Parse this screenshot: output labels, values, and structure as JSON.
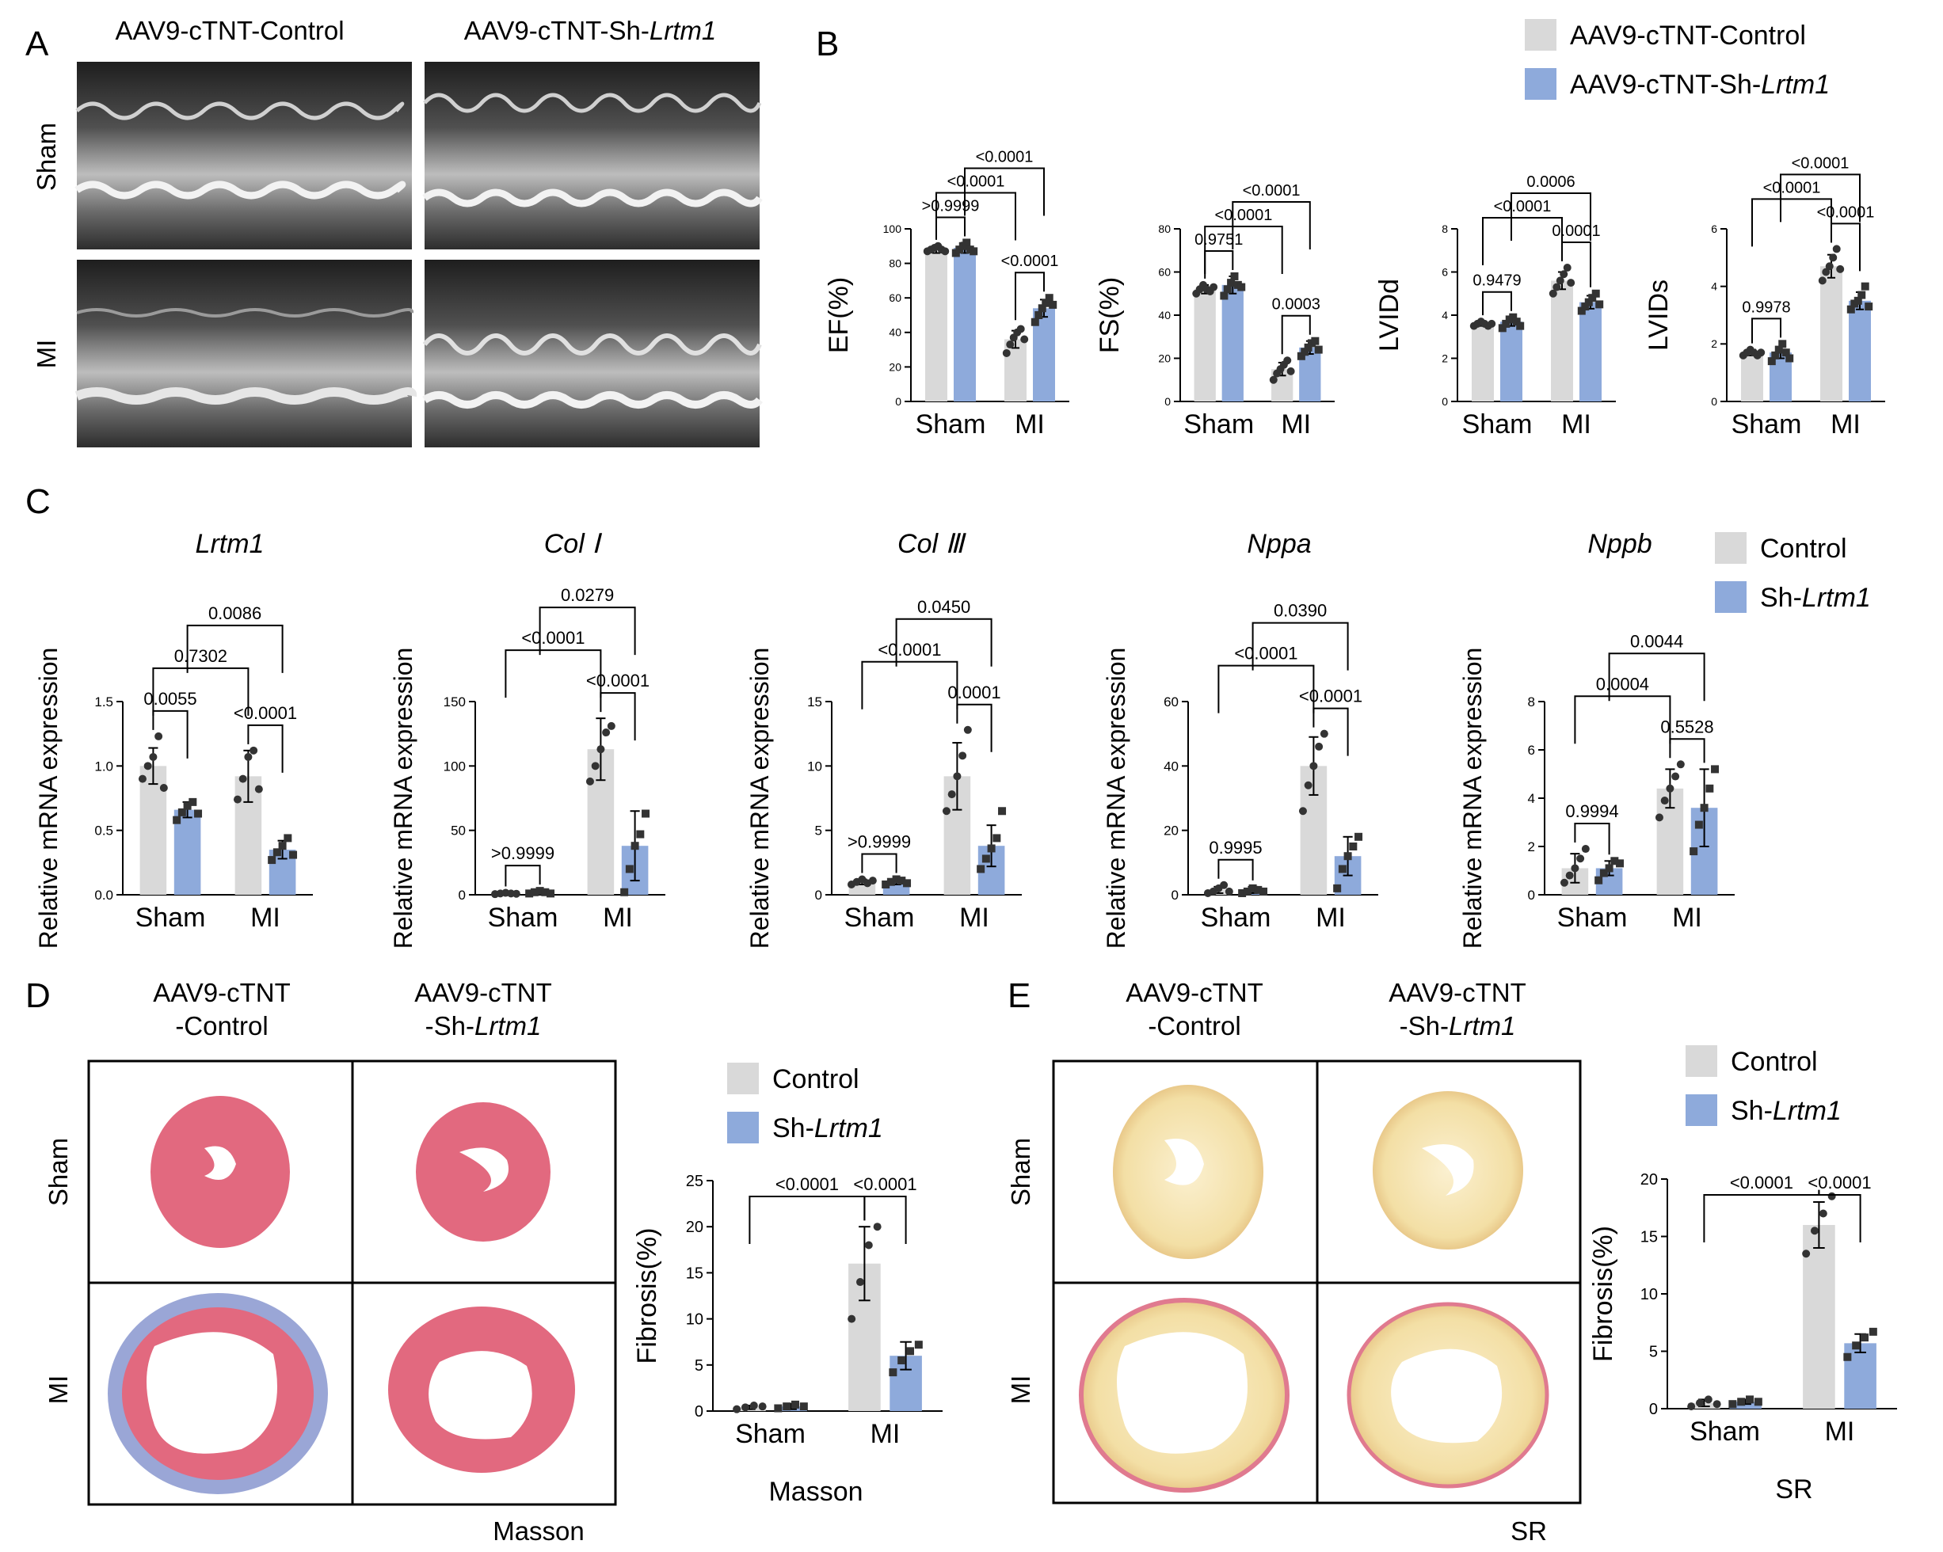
{
  "colors": {
    "control": "#d9d9d9",
    "sh": "#8eaadb",
    "dot": "#333333",
    "line": "#000000"
  },
  "panels": {
    "A": "A",
    "B": "B",
    "C": "C",
    "D": "D",
    "E": "E"
  },
  "group_ctrl": "AAV9-cTNT-Control",
  "group_sh_prefix": "AAV9-cTNT-Sh-",
  "gene_italic": "Lrtm1",
  "row_sham": "Sham",
  "row_mi": "MI",
  "short_ctrl": "Control",
  "short_sh_prefix": "Sh-",
  "split_top": "AAV9-cTNT",
  "split_ctrl": "-Control",
  "split_sh": "-Sh-",
  "stain_masson": "Masson",
  "stain_sr": "SR",
  "chart_data": [
    {
      "id": "EF",
      "type": "bar",
      "ylabel": "EF(%)",
      "categories": [
        "Sham",
        "MI"
      ],
      "ylim": [
        0,
        100
      ],
      "ticks": [
        0,
        20,
        40,
        60,
        80,
        100
      ],
      "series": [
        {
          "name": "AAV9-cTNT-Control",
          "values": [
            88,
            36
          ],
          "sd": [
            2,
            5
          ],
          "points": [
            [
              87,
              88,
              89,
              90,
              88,
              87
            ],
            [
              28,
              33,
              37,
              40,
              42,
              36
            ]
          ]
        },
        {
          "name": "AAV9-cTNT-Sh-Lrtm1",
          "values": [
            89,
            54
          ],
          "sd": [
            3,
            5
          ],
          "points": [
            [
              86,
              88,
              90,
              92,
              88,
              87
            ],
            [
              46,
              50,
              54,
              57,
              60,
              56
            ]
          ]
        }
      ],
      "comparisons": [
        {
          "label": ">0.9999",
          "a": 0,
          "b": 1,
          "level": 1
        },
        {
          "label": "<0.0001",
          "a": 2,
          "b": 3,
          "level": 1
        },
        {
          "label": "<0.0001",
          "a": 0,
          "b": 2,
          "level": 2
        },
        {
          "label": "<0.0001",
          "a": 1,
          "b": 3,
          "level": 3
        }
      ]
    },
    {
      "id": "FS",
      "type": "bar",
      "ylabel": "FS(%)",
      "categories": [
        "Sham",
        "MI"
      ],
      "ylim": [
        0,
        80
      ],
      "ticks": [
        0,
        20,
        40,
        60,
        80
      ],
      "series": [
        {
          "name": "AAV9-cTNT-Control",
          "values": [
            52,
            15
          ],
          "sd": [
            2,
            3
          ],
          "points": [
            [
              50,
              52,
              54,
              52,
              51,
              53
            ],
            [
              10,
              13,
              15,
              17,
              19,
              14
            ]
          ]
        },
        {
          "name": "AAV9-cTNT-Sh-Lrtm1",
          "values": [
            54,
            25
          ],
          "sd": [
            4,
            3
          ],
          "points": [
            [
              49,
              52,
              55,
              58,
              54,
              53
            ],
            [
              21,
              23,
              25,
              27,
              28,
              24
            ]
          ]
        }
      ],
      "comparisons": [
        {
          "label": "0.9751",
          "a": 0,
          "b": 1,
          "level": 1
        },
        {
          "label": "0.0003",
          "a": 2,
          "b": 3,
          "level": 1
        },
        {
          "label": "<0.0001",
          "a": 0,
          "b": 2,
          "level": 2
        },
        {
          "label": "<0.0001",
          "a": 1,
          "b": 3,
          "level": 3
        }
      ]
    },
    {
      "id": "LVIDd",
      "type": "bar",
      "ylabel": "LVIDd",
      "categories": [
        "Sham",
        "MI"
      ],
      "ylim": [
        0,
        8
      ],
      "ticks": [
        0,
        2,
        4,
        6,
        8
      ],
      "series": [
        {
          "name": "AAV9-cTNT-Control",
          "values": [
            3.6,
            5.6
          ],
          "sd": [
            0.1,
            0.4
          ],
          "points": [
            [
              3.5,
              3.6,
              3.7,
              3.6,
              3.5,
              3.6
            ],
            [
              5.0,
              5.3,
              5.6,
              5.9,
              6.2,
              5.5
            ]
          ]
        },
        {
          "name": "AAV9-cTNT-Sh-Lrtm1",
          "values": [
            3.7,
            4.6
          ],
          "sd": [
            0.2,
            0.3
          ],
          "points": [
            [
              3.4,
              3.6,
              3.8,
              3.9,
              3.7,
              3.5
            ],
            [
              4.2,
              4.4,
              4.6,
              4.8,
              5.0,
              4.5
            ]
          ]
        }
      ],
      "comparisons": [
        {
          "label": "0.9479",
          "a": 0,
          "b": 1,
          "level": 1
        },
        {
          "label": "0.0001",
          "a": 2,
          "b": 3,
          "level": 1
        },
        {
          "label": "<0.0001",
          "a": 0,
          "b": 2,
          "level": 2
        },
        {
          "label": "0.0006",
          "a": 1,
          "b": 3,
          "level": 3
        }
      ]
    },
    {
      "id": "LVIDs",
      "type": "bar",
      "ylabel": "LVIDs",
      "categories": [
        "Sham",
        "MI"
      ],
      "ylim": [
        0,
        6
      ],
      "ticks": [
        0,
        2,
        4,
        6
      ],
      "series": [
        {
          "name": "AAV9-cTNT-Control",
          "values": [
            1.7,
            4.7
          ],
          "sd": [
            0.1,
            0.4
          ],
          "points": [
            [
              1.6,
              1.7,
              1.8,
              1.7,
              1.6,
              1.7
            ],
            [
              4.2,
              4.5,
              4.7,
              5.0,
              5.3,
              4.6
            ]
          ]
        },
        {
          "name": "AAV9-cTNT-Sh-Lrtm1",
          "values": [
            1.7,
            3.5
          ],
          "sd": [
            0.2,
            0.3
          ],
          "points": [
            [
              1.4,
              1.6,
              1.8,
              2.0,
              1.7,
              1.5
            ],
            [
              3.2,
              3.4,
              3.5,
              3.7,
              4.0,
              3.3
            ]
          ]
        }
      ],
      "comparisons": [
        {
          "label": "0.9978",
          "a": 0,
          "b": 1,
          "level": 1
        },
        {
          "label": "<0.0001",
          "a": 2,
          "b": 3,
          "level": 1
        },
        {
          "label": "<0.0001",
          "a": 0,
          "b": 2,
          "level": 2
        },
        {
          "label": "<0.0001",
          "a": 1,
          "b": 3,
          "level": 3
        }
      ]
    },
    {
      "id": "Lrtm1",
      "type": "bar",
      "title": "Lrtm1",
      "ylabel": "Relative mRNA expression",
      "categories": [
        "Sham",
        "MI"
      ],
      "ylim": [
        0,
        1.5
      ],
      "ticks": [
        0.0,
        0.5,
        1.0,
        1.5
      ],
      "series": [
        {
          "name": "Control",
          "values": [
            1.0,
            0.92
          ],
          "sd": [
            0.14,
            0.2
          ],
          "points": [
            [
              0.9,
              1.0,
              1.07,
              1.23,
              0.83
            ],
            [
              0.74,
              0.9,
              1.07,
              1.12,
              0.82
            ]
          ]
        },
        {
          "name": "Sh-Lrtm1",
          "values": [
            0.66,
            0.35
          ],
          "sd": [
            0.06,
            0.07
          ],
          "points": [
            [
              0.58,
              0.64,
              0.69,
              0.72,
              0.63
            ],
            [
              0.27,
              0.33,
              0.38,
              0.44,
              0.31
            ]
          ]
        }
      ],
      "comparisons": [
        {
          "label": "0.0055",
          "a": 0,
          "b": 1,
          "level": 1
        },
        {
          "label": "<0.0001",
          "a": 2,
          "b": 3,
          "level": 1
        },
        {
          "label": "0.7302",
          "a": 0,
          "b": 2,
          "level": 2
        },
        {
          "label": "0.0086",
          "a": 1,
          "b": 3,
          "level": 3
        }
      ]
    },
    {
      "id": "Col1",
      "type": "bar",
      "title": "Col Ⅰ",
      "ylabel": "Relative mRNA expression",
      "categories": [
        "Sham",
        "MI"
      ],
      "ylim": [
        0,
        150
      ],
      "ticks": [
        0,
        50,
        100,
        150
      ],
      "series": [
        {
          "name": "Control",
          "values": [
            1,
            113
          ],
          "sd": [
            0.5,
            24
          ],
          "points": [
            [
              0.5,
              1,
              1.5,
              1,
              0.8
            ],
            [
              88,
              100,
              113,
              126,
              131
            ]
          ]
        },
        {
          "name": "Sh-Lrtm1",
          "values": [
            2,
            38
          ],
          "sd": [
            1,
            27
          ],
          "points": [
            [
              1,
              2,
              3,
              2,
              1
            ],
            [
              2,
              20,
              38,
              47,
              63
            ]
          ]
        }
      ],
      "comparisons": [
        {
          "label": ">0.9999",
          "a": 0,
          "b": 1,
          "level": 1
        },
        {
          "label": "<0.0001",
          "a": 2,
          "b": 3,
          "level": 1
        },
        {
          "label": "<0.0001",
          "a": 0,
          "b": 2,
          "level": 2
        },
        {
          "label": "0.0279",
          "a": 1,
          "b": 3,
          "level": 3
        }
      ]
    },
    {
      "id": "Col3",
      "type": "bar",
      "title": "Col Ⅲ",
      "ylabel": "Relative mRNA expression",
      "categories": [
        "Sham",
        "MI"
      ],
      "ylim": [
        0,
        15
      ],
      "ticks": [
        0,
        5,
        10,
        15
      ],
      "series": [
        {
          "name": "Control",
          "values": [
            1.0,
            9.2
          ],
          "sd": [
            0.2,
            2.6
          ],
          "points": [
            [
              0.8,
              1.0,
              1.2,
              0.9,
              1.1
            ],
            [
              6.5,
              7.8,
              9.2,
              10.8,
              12.8
            ]
          ]
        },
        {
          "name": "Sh-Lrtm1",
          "values": [
            1.0,
            3.8
          ],
          "sd": [
            0.2,
            1.6
          ],
          "points": [
            [
              0.8,
              1.0,
              1.2,
              1.1,
              0.9
            ],
            [
              2.0,
              2.8,
              3.6,
              4.4,
              6.5
            ]
          ]
        }
      ],
      "comparisons": [
        {
          "label": ">0.9999",
          "a": 0,
          "b": 1,
          "level": 1
        },
        {
          "label": "0.0001",
          "a": 2,
          "b": 3,
          "level": 1
        },
        {
          "label": "<0.0001",
          "a": 0,
          "b": 2,
          "level": 2
        },
        {
          "label": "0.0450",
          "a": 1,
          "b": 3,
          "level": 3
        }
      ]
    },
    {
      "id": "Nppa",
      "type": "bar",
      "title": "Nppa",
      "ylabel": "Relative mRNA expression",
      "categories": [
        "Sham",
        "MI"
      ],
      "ylim": [
        0,
        60
      ],
      "ticks": [
        0,
        20,
        40,
        60
      ],
      "series": [
        {
          "name": "Control",
          "values": [
            1.5,
            40
          ],
          "sd": [
            1,
            9
          ],
          "points": [
            [
              0.5,
              1,
              2,
              3,
              1
            ],
            [
              26,
              34,
              40,
              46,
              50
            ]
          ]
        },
        {
          "name": "Sh-Lrtm1",
          "values": [
            1.5,
            12
          ],
          "sd": [
            1,
            6
          ],
          "points": [
            [
              0.5,
              1,
              2,
              1.5,
              1
            ],
            [
              2,
              8,
              12,
              15,
              18
            ]
          ]
        }
      ],
      "comparisons": [
        {
          "label": "0.9995",
          "a": 0,
          "b": 1,
          "level": 1
        },
        {
          "label": "<0.0001",
          "a": 2,
          "b": 3,
          "level": 1
        },
        {
          "label": "<0.0001",
          "a": 0,
          "b": 2,
          "level": 2
        },
        {
          "label": "0.0390",
          "a": 1,
          "b": 3,
          "level": 3
        }
      ]
    },
    {
      "id": "Nppb",
      "type": "bar",
      "title": "Nppb",
      "ylabel": "Relative mRNA expression",
      "categories": [
        "Sham",
        "MI"
      ],
      "ylim": [
        0,
        8
      ],
      "ticks": [
        0,
        2,
        4,
        6,
        8
      ],
      "series": [
        {
          "name": "Control",
          "values": [
            1.1,
            4.4
          ],
          "sd": [
            0.6,
            0.8
          ],
          "points": [
            [
              0.5,
              0.8,
              1.1,
              1.5,
              1.9
            ],
            [
              3.2,
              3.9,
              4.4,
              4.9,
              5.4
            ]
          ]
        },
        {
          "name": "Sh-Lrtm1",
          "values": [
            1.1,
            3.6
          ],
          "sd": [
            0.3,
            1.6
          ],
          "points": [
            [
              0.6,
              0.9,
              1.1,
              1.4,
              1.3
            ],
            [
              1.8,
              2.9,
              3.6,
              4.4,
              5.2
            ]
          ]
        }
      ],
      "comparisons": [
        {
          "label": "0.9994",
          "a": 0,
          "b": 1,
          "level": 1
        },
        {
          "label": "0.5528",
          "a": 2,
          "b": 3,
          "level": 1
        },
        {
          "label": "0.0004",
          "a": 0,
          "b": 2,
          "level": 2
        },
        {
          "label": "0.0044",
          "a": 1,
          "b": 3,
          "level": 3
        }
      ]
    },
    {
      "id": "MassonFib",
      "type": "bar",
      "ylabel": "Fibrosis(%)",
      "xlabel": "Masson",
      "categories": [
        "Sham",
        "MI"
      ],
      "ylim": [
        0,
        25
      ],
      "ticks": [
        0,
        5,
        10,
        15,
        20,
        25
      ],
      "series": [
        {
          "name": "Control",
          "values": [
            0.4,
            16
          ],
          "sd": [
            0.2,
            4
          ],
          "points": [
            [
              0.2,
              0.4,
              0.6,
              0.5
            ],
            [
              10,
              14,
              18,
              20
            ]
          ]
        },
        {
          "name": "Sh-Lrtm1",
          "values": [
            0.5,
            6
          ],
          "sd": [
            0.3,
            1.5
          ],
          "points": [
            [
              0.3,
              0.5,
              0.7,
              0.5
            ],
            [
              4.2,
              5.5,
              6.5,
              7.2
            ]
          ]
        }
      ],
      "comparisons": [
        {
          "label": "<0.0001",
          "a": 0,
          "b": 2,
          "level": 1
        },
        {
          "label": "<0.0001",
          "a": 2,
          "b": 3,
          "level": 1
        }
      ]
    },
    {
      "id": "SRFib",
      "type": "bar",
      "ylabel": "Fibrosis(%)",
      "xlabel": "SR",
      "categories": [
        "Sham",
        "MI"
      ],
      "ylim": [
        0,
        20
      ],
      "ticks": [
        0,
        5,
        10,
        15,
        20
      ],
      "series": [
        {
          "name": "Control",
          "values": [
            0.5,
            16
          ],
          "sd": [
            0.3,
            2
          ],
          "points": [
            [
              0.2,
              0.5,
              0.8,
              0.4
            ],
            [
              13.5,
              15.5,
              17,
              18.5
            ]
          ]
        },
        {
          "name": "Sh-Lrtm1",
          "values": [
            0.6,
            5.7
          ],
          "sd": [
            0.2,
            0.8
          ],
          "points": [
            [
              0.4,
              0.6,
              0.8,
              0.6
            ],
            [
              4.5,
              5.5,
              6.2,
              6.7
            ]
          ]
        }
      ],
      "comparisons": [
        {
          "label": "<0.0001",
          "a": 0,
          "b": 2,
          "level": 1
        },
        {
          "label": "<0.0001",
          "a": 2,
          "b": 3,
          "level": 1
        }
      ]
    }
  ]
}
